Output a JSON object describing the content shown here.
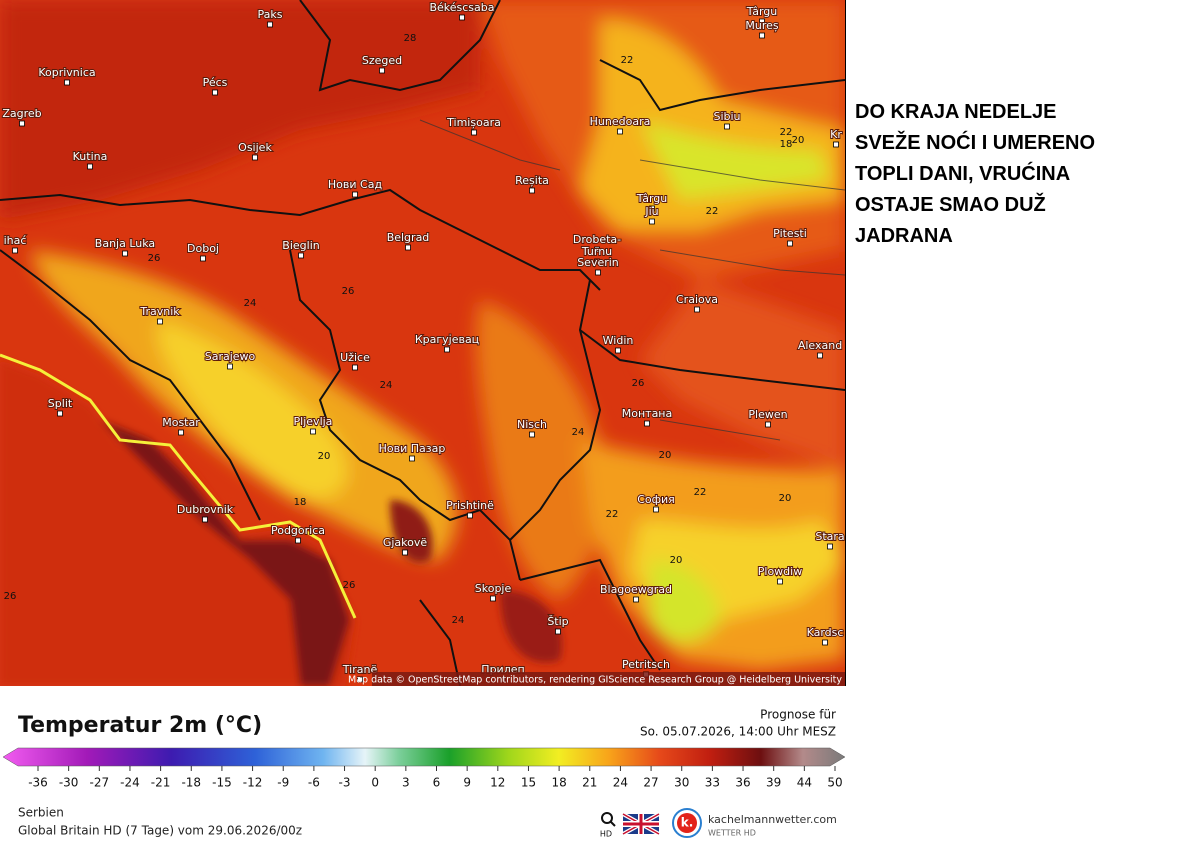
{
  "headline": {
    "lines": [
      "DO KRAJA NEDELJE",
      "SVEŽE NOĆI I UMERENO",
      "TOPLI DANI, VRUĆINA",
      "OSTAJE SMAO DUŽ",
      "JADRANA"
    ]
  },
  "map": {
    "cities": [
      "Paks",
      "Békéscsaba",
      "Târgu",
      "Mureș",
      "Koprivnica",
      "Pécs",
      "Szeged",
      "Zagreb",
      "Timișoara",
      "Hunedoara",
      "Sibiu",
      "Osijek",
      "Kutina",
      "Нови Сад",
      "Reșita",
      "Târgu",
      "Jiu",
      "ihać",
      "Banja Luka",
      "Doboj",
      "Bieglin",
      "Belgrad",
      "Drobeta-",
      "Turnu",
      "Severin",
      "Pitesti",
      "Travnik",
      "Craiova",
      "Sarajewo",
      "Užice",
      "Крагујевац",
      "Widin",
      "Alexand",
      "Split",
      "Mostar",
      "Pljevlja",
      "Nisch",
      "Монтана",
      "Plewen",
      "Нови Пазар",
      "Dubrovnik",
      "Prishtinë",
      "София",
      "Stara",
      "Podgorica",
      "Gjakovë",
      "Plowdiw",
      "Skopje",
      "Blagoewgrad",
      "Štip",
      "Kardsc",
      "Petritsch",
      "Прилеп",
      "Tiranë",
      "Kr"
    ],
    "contour_labels": [
      28,
      22,
      22,
      18,
      20,
      22,
      26,
      24,
      26,
      24,
      26,
      24,
      20,
      20,
      18,
      22,
      20,
      22,
      20,
      24,
      26,
      26
    ],
    "attribution": "Map data © OpenStreetMap contributors, rendering GIScience Research Group @ Heidelberg University"
  },
  "legend": {
    "title": "Temperatur 2m (°C)",
    "forecast_label": "Prognose für",
    "forecast_time": "So. 05.07.2026, 14:00 Uhr MESZ",
    "ticks": [
      -36,
      -30,
      -27,
      -24,
      -21,
      -18,
      -15,
      -12,
      -9,
      -6,
      -3,
      0,
      3,
      6,
      9,
      12,
      15,
      18,
      21,
      24,
      27,
      30,
      33,
      36,
      39,
      44,
      50
    ]
  },
  "footer": {
    "region": "Serbien",
    "model": "Global Britain HD (7 Tage) vom 29.06.2026/00z",
    "search_label": "HD",
    "brand_logo": "k.",
    "brand": "kachelmannwetter.com",
    "brand_sub": "WETTER HD"
  }
}
